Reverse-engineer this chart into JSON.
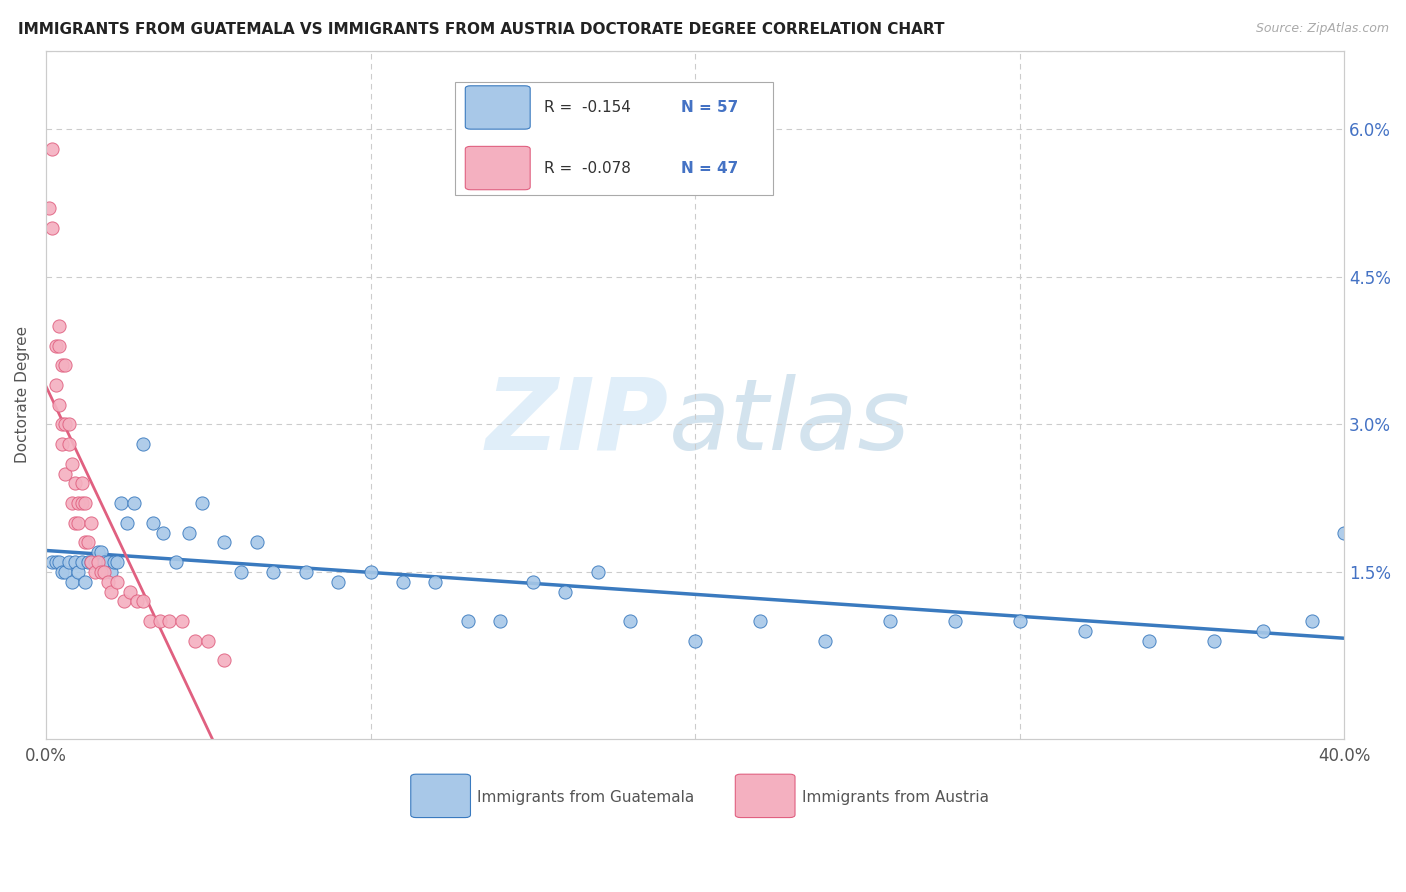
{
  "title": "IMMIGRANTS FROM GUATEMALA VS IMMIGRANTS FROM AUSTRIA DOCTORATE DEGREE CORRELATION CHART",
  "source": "Source: ZipAtlas.com",
  "ylabel": "Doctorate Degree",
  "ytick_values": [
    0.0,
    0.015,
    0.03,
    0.045,
    0.06
  ],
  "ytick_labels": [
    "",
    "1.5%",
    "3.0%",
    "4.5%",
    "6.0%"
  ],
  "xlim": [
    0.0,
    0.4
  ],
  "ylim": [
    -0.002,
    0.068
  ],
  "legend_r_guatemala": "R =  -0.154",
  "legend_n_guatemala": "N = 57",
  "legend_r_austria": "R =  -0.078",
  "legend_n_austria": "N = 47",
  "color_guatemala": "#a8c8e8",
  "color_austria": "#f4b0c0",
  "color_line_guatemala": "#3a7abf",
  "color_line_austria": "#e06080",
  "guatemala_x": [
    0.002,
    0.003,
    0.004,
    0.005,
    0.006,
    0.007,
    0.008,
    0.009,
    0.01,
    0.011,
    0.012,
    0.013,
    0.014,
    0.015,
    0.016,
    0.017,
    0.018,
    0.019,
    0.02,
    0.021,
    0.022,
    0.023,
    0.025,
    0.027,
    0.03,
    0.033,
    0.036,
    0.04,
    0.044,
    0.048,
    0.055,
    0.06,
    0.065,
    0.07,
    0.08,
    0.09,
    0.1,
    0.11,
    0.12,
    0.13,
    0.14,
    0.15,
    0.16,
    0.17,
    0.18,
    0.2,
    0.22,
    0.24,
    0.26,
    0.28,
    0.3,
    0.32,
    0.34,
    0.36,
    0.375,
    0.39,
    0.4
  ],
  "guatemala_y": [
    0.016,
    0.016,
    0.016,
    0.015,
    0.015,
    0.016,
    0.014,
    0.016,
    0.015,
    0.016,
    0.014,
    0.016,
    0.016,
    0.016,
    0.017,
    0.017,
    0.016,
    0.016,
    0.015,
    0.016,
    0.016,
    0.022,
    0.02,
    0.022,
    0.028,
    0.02,
    0.019,
    0.016,
    0.019,
    0.022,
    0.018,
    0.015,
    0.018,
    0.015,
    0.015,
    0.014,
    0.015,
    0.014,
    0.014,
    0.01,
    0.01,
    0.014,
    0.013,
    0.015,
    0.01,
    0.008,
    0.01,
    0.008,
    0.01,
    0.01,
    0.01,
    0.009,
    0.008,
    0.008,
    0.009,
    0.01,
    0.019
  ],
  "austria_x": [
    0.001,
    0.002,
    0.002,
    0.003,
    0.003,
    0.004,
    0.004,
    0.004,
    0.005,
    0.005,
    0.005,
    0.006,
    0.006,
    0.006,
    0.007,
    0.007,
    0.008,
    0.008,
    0.009,
    0.009,
    0.01,
    0.01,
    0.011,
    0.011,
    0.012,
    0.012,
    0.013,
    0.014,
    0.014,
    0.015,
    0.016,
    0.017,
    0.018,
    0.019,
    0.02,
    0.022,
    0.024,
    0.026,
    0.028,
    0.03,
    0.032,
    0.035,
    0.038,
    0.042,
    0.046,
    0.05,
    0.055
  ],
  "austria_y": [
    0.052,
    0.058,
    0.05,
    0.038,
    0.034,
    0.04,
    0.038,
    0.032,
    0.036,
    0.03,
    0.028,
    0.036,
    0.03,
    0.025,
    0.03,
    0.028,
    0.026,
    0.022,
    0.024,
    0.02,
    0.022,
    0.02,
    0.022,
    0.024,
    0.018,
    0.022,
    0.018,
    0.016,
    0.02,
    0.015,
    0.016,
    0.015,
    0.015,
    0.014,
    0.013,
    0.014,
    0.012,
    0.013,
    0.012,
    0.012,
    0.01,
    0.01,
    0.01,
    0.01,
    0.008,
    0.008,
    0.006
  ]
}
